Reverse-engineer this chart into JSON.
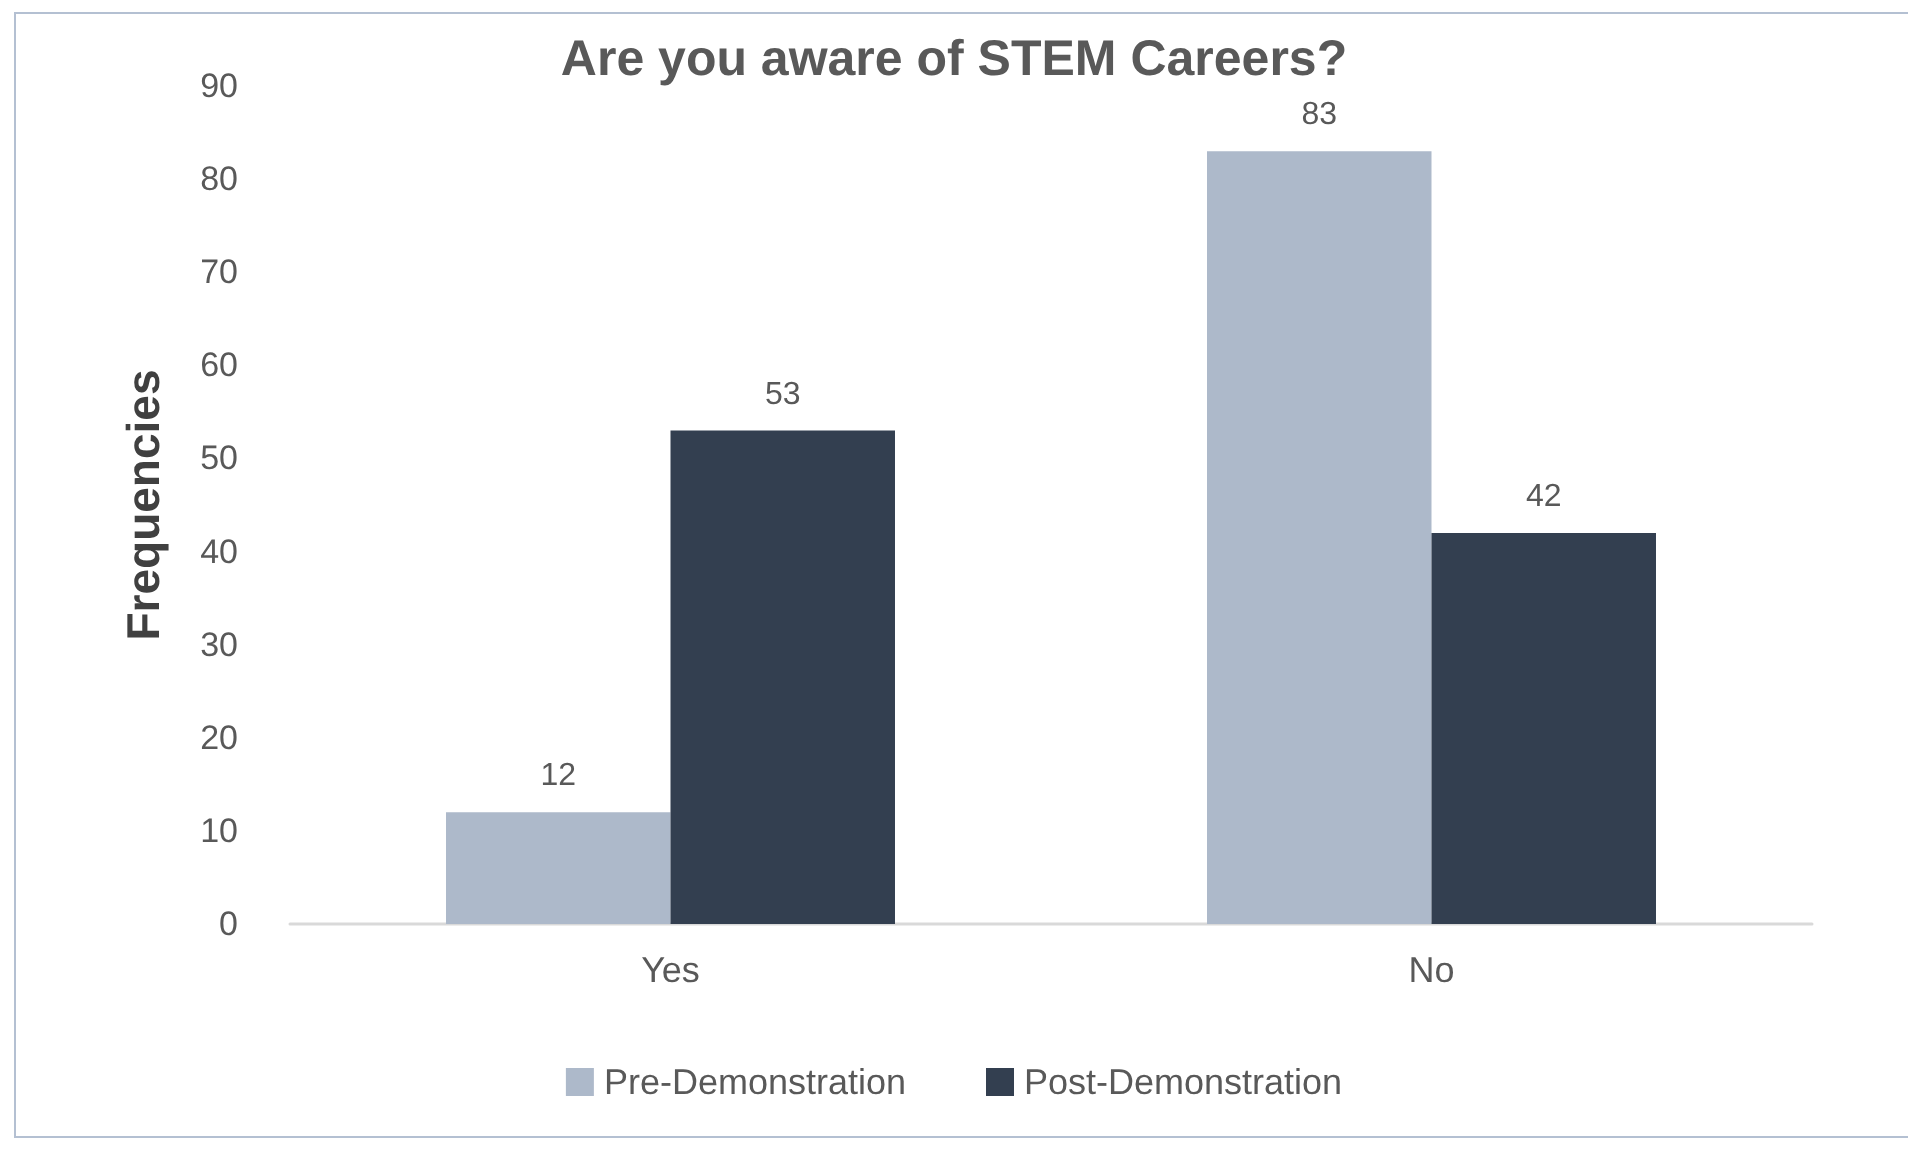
{
  "chart_data": {
    "type": "bar",
    "title": "Are you aware of STEM Careers?",
    "ylabel": "Frequencies",
    "categories": [
      "Yes",
      "No"
    ],
    "series": [
      {
        "name": "Pre-Demonstration",
        "color": "#adb9ca",
        "values": [
          12,
          83
        ]
      },
      {
        "name": "Post-Demonstration",
        "color": "#333f50",
        "values": [
          53,
          42
        ]
      }
    ],
    "ylim": [
      0,
      90
    ],
    "yticks": [
      0,
      10,
      20,
      30,
      40,
      50,
      60,
      70,
      80,
      90
    ],
    "grid": false,
    "legend": "bottom",
    "data_labels": true
  }
}
